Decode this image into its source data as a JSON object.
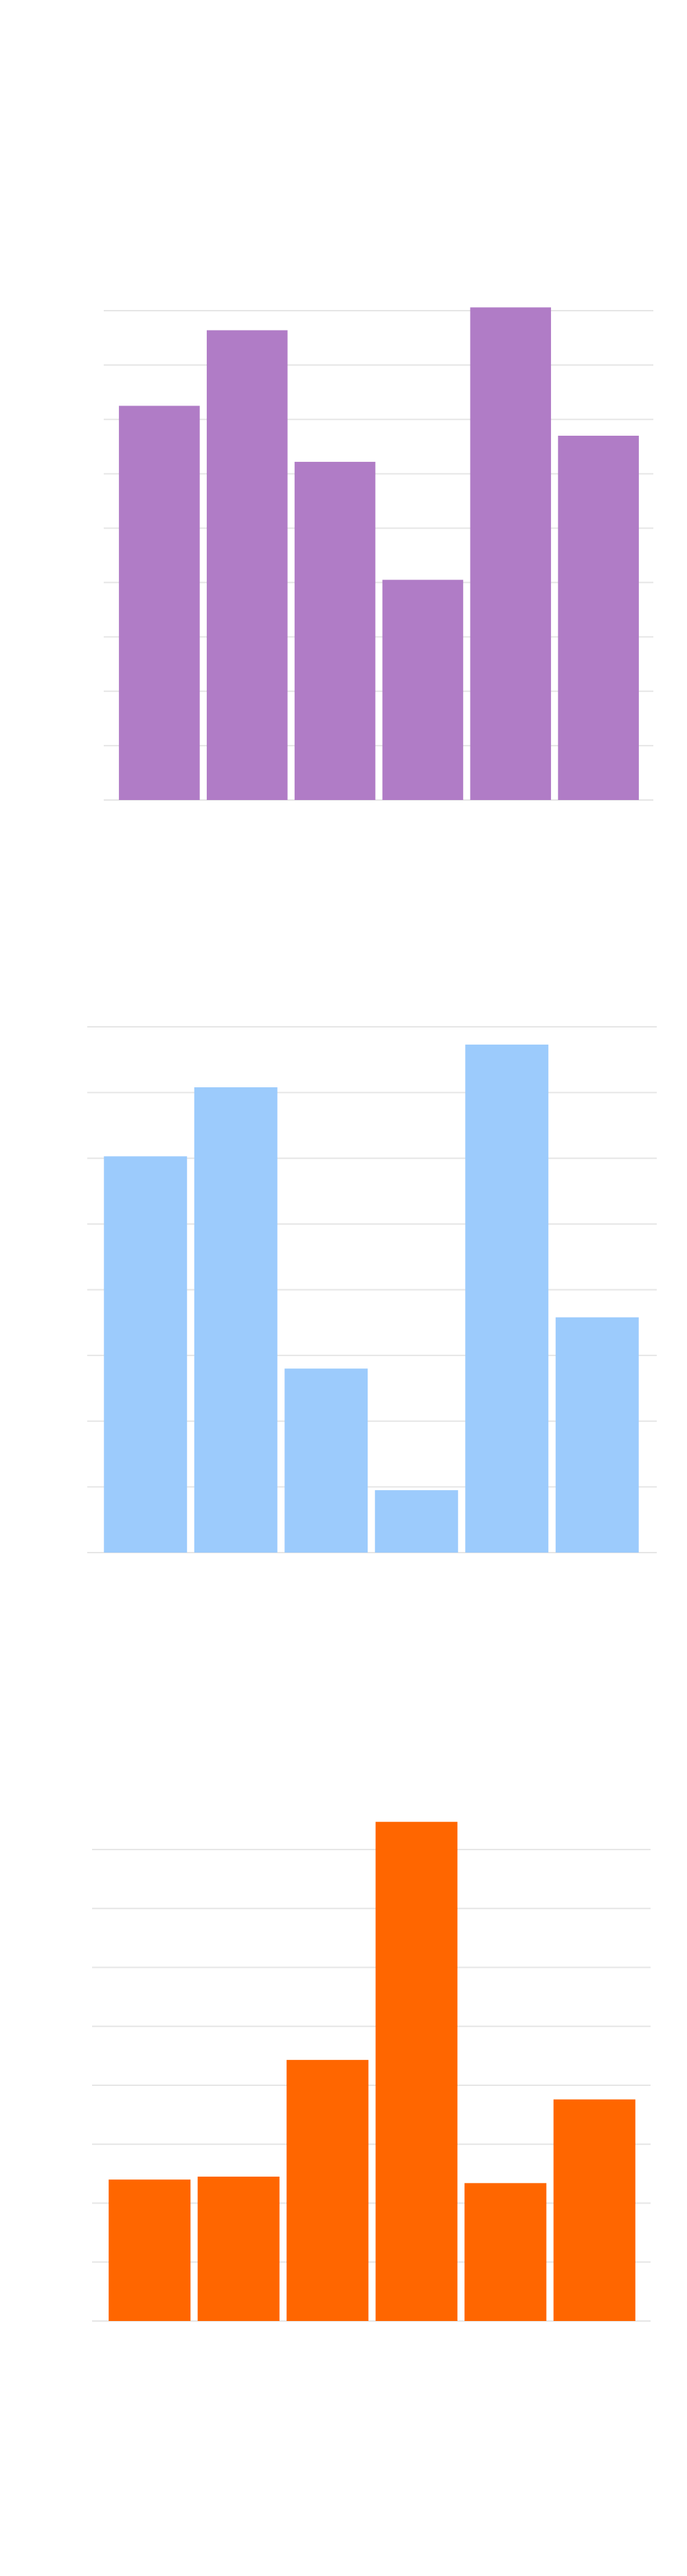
{
  "chart_data": [
    {
      "type": "bar",
      "color": "#b07cc6",
      "values": [
        7.25,
        8.64,
        6.22,
        4.05,
        9.06,
        6.7
      ],
      "ylim": [
        0,
        9
      ],
      "yticks": [
        0,
        1,
        2,
        3,
        4,
        5,
        6,
        7,
        8,
        9
      ],
      "grid": true
    },
    {
      "type": "bar",
      "color": "#9ccbfc",
      "values": [
        6.03,
        7.08,
        2.8,
        0.95,
        7.73,
        3.58
      ],
      "ylim": [
        0,
        8
      ],
      "yticks": [
        0,
        1,
        2,
        3,
        4,
        5,
        6,
        7,
        8
      ],
      "grid": true
    },
    {
      "type": "bar",
      "color": "#ff6600",
      "values": [
        2.4,
        2.45,
        4.43,
        8.47,
        2.34,
        3.76
      ],
      "ylim": [
        0,
        8
      ],
      "yticks": [
        0,
        1,
        2,
        3,
        4,
        5,
        6,
        7,
        8
      ],
      "grid": true
    }
  ]
}
